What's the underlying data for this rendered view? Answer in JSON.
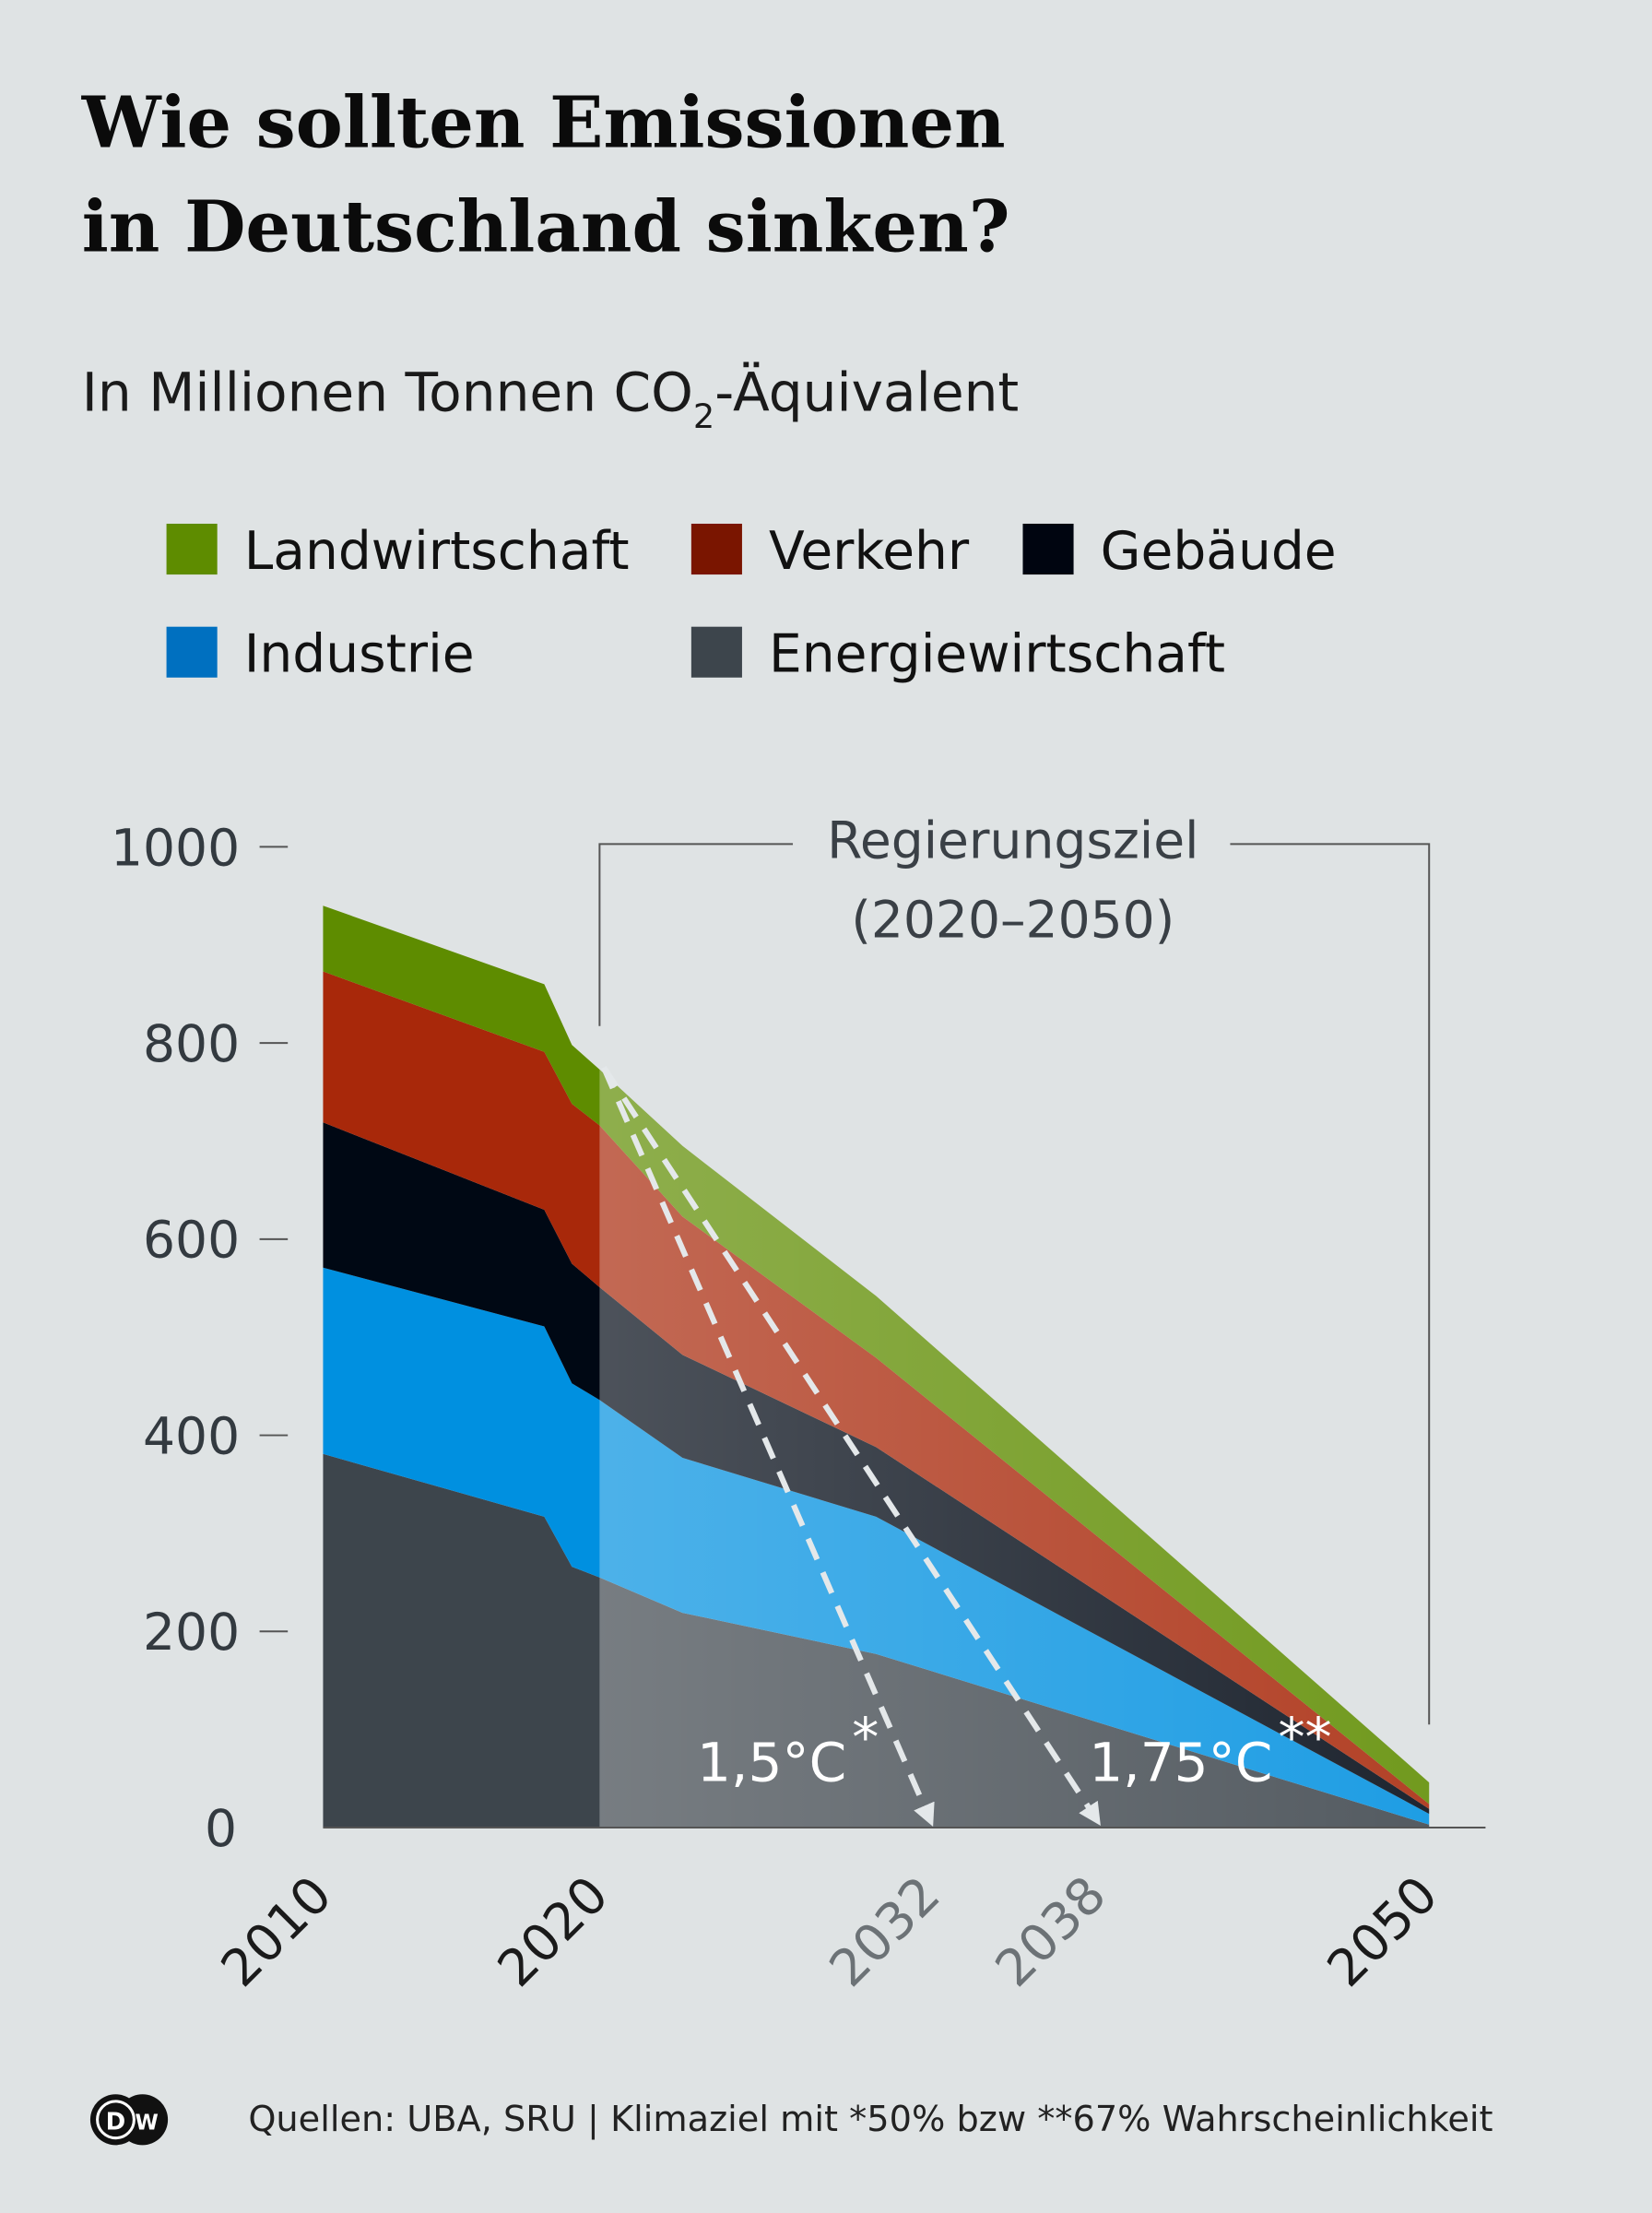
{
  "title_line1": "Wie sollten Emissionen",
  "title_line2": "in Deutschland sinken?",
  "subtitle": {
    "prefix": "In Millionen Tonnen CO",
    "sub": "2",
    "suffix": "-Äquivalent"
  },
  "legend": [
    {
      "name": "Landwirtschaft",
      "color": "#5e8c00"
    },
    {
      "name": "Verkehr",
      "color": "#7a1500"
    },
    {
      "name": "Gebäude",
      "color": "#000510"
    },
    {
      "name": "Industrie",
      "color": "#0070c0"
    },
    {
      "name": "Energiewirtschaft",
      "color": "#3d454c"
    }
  ],
  "annotation": {
    "line1": "Regierungsziel",
    "line2": "(2020–2050)"
  },
  "paths": [
    {
      "label": "1,5°C",
      "mark": "*",
      "target_year": 2032
    },
    {
      "label": "1,75°C",
      "mark": "**",
      "target_year": 2038
    }
  ],
  "footer": {
    "logo": "DW",
    "source": "Quellen: UBA, SRU | Klimaziel mit *50% bzw **67% Wahrscheinlichkeit"
  },
  "chart_data": {
    "type": "area",
    "stacked": true,
    "x": [
      2010,
      2018,
      2019,
      2020,
      2023,
      2030,
      2050
    ],
    "series": [
      {
        "name": "Energiewirtschaft",
        "color": "#3d454c",
        "values": [
          381,
          317,
          266,
          255,
          219,
          177,
          3
        ]
      },
      {
        "name": "Industrie",
        "color": "#0090e0",
        "values": [
          190,
          194,
          187,
          181,
          158,
          140,
          11
        ]
      },
      {
        "name": "Gebäude",
        "color": "#000814",
        "values": [
          148,
          119,
          122,
          115,
          105,
          71,
          5
        ]
      },
      {
        "name": "Verkehr",
        "color": "#a8280a",
        "values": [
          154,
          161,
          163,
          165,
          141,
          91,
          5
        ]
      },
      {
        "name": "Landwirtschaft",
        "color": "#5e8c00",
        "values": [
          67,
          69,
          60,
          57,
          72,
          63,
          22
        ]
      }
    ],
    "ylim": [
      0,
      1000
    ],
    "yticks": [
      "0",
      "200",
      "400",
      "600",
      "800",
      "1000"
    ],
    "xticks": [
      "2010",
      "2020",
      "2032",
      "2038",
      "2050"
    ],
    "highlighted_range": [
      2020,
      2050
    ]
  }
}
